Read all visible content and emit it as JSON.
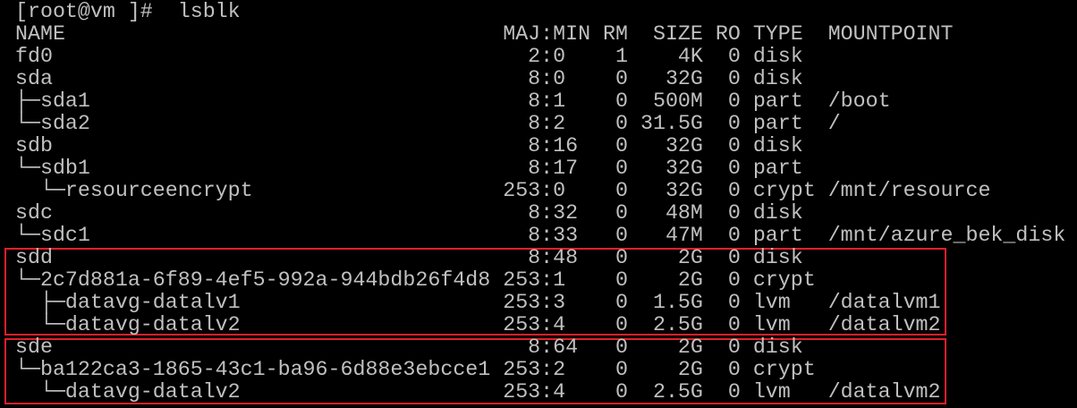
{
  "prompt": "[root@vm ]#  lsblk",
  "headers": {
    "name": "NAME",
    "majmin": "MAJ:MIN",
    "rm": "RM",
    "size": "SIZE",
    "ro": "RO",
    "type": "TYPE",
    "mountpoint": "MOUNTPOINT"
  },
  "rows": [
    {
      "name": "fd0",
      "majmin": "2:0",
      "rm": "1",
      "size": "4K",
      "ro": "0",
      "type": "disk",
      "mountpoint": ""
    },
    {
      "name": "sda",
      "majmin": "8:0",
      "rm": "0",
      "size": "32G",
      "ro": "0",
      "type": "disk",
      "mountpoint": ""
    },
    {
      "name": "├─sda1",
      "majmin": "8:1",
      "rm": "0",
      "size": "500M",
      "ro": "0",
      "type": "part",
      "mountpoint": "/boot"
    },
    {
      "name": "└─sda2",
      "majmin": "8:2",
      "rm": "0",
      "size": "31.5G",
      "ro": "0",
      "type": "part",
      "mountpoint": "/"
    },
    {
      "name": "sdb",
      "majmin": "8:16",
      "rm": "0",
      "size": "32G",
      "ro": "0",
      "type": "disk",
      "mountpoint": ""
    },
    {
      "name": "└─sdb1",
      "majmin": "8:17",
      "rm": "0",
      "size": "32G",
      "ro": "0",
      "type": "part",
      "mountpoint": ""
    },
    {
      "name": "  └─resourceencrypt",
      "majmin": "253:0",
      "rm": "0",
      "size": "32G",
      "ro": "0",
      "type": "crypt",
      "mountpoint": "/mnt/resource"
    },
    {
      "name": "sdc",
      "majmin": "8:32",
      "rm": "0",
      "size": "48M",
      "ro": "0",
      "type": "disk",
      "mountpoint": ""
    },
    {
      "name": "└─sdc1",
      "majmin": "8:33",
      "rm": "0",
      "size": "47M",
      "ro": "0",
      "type": "part",
      "mountpoint": "/mnt/azure_bek_disk"
    },
    {
      "name": "sdd",
      "majmin": "8:48",
      "rm": "0",
      "size": "2G",
      "ro": "0",
      "type": "disk",
      "mountpoint": ""
    },
    {
      "name": "└─2c7d881a-6f89-4ef5-992a-944bdb26f4d8",
      "majmin": "253:1",
      "rm": "0",
      "size": "2G",
      "ro": "0",
      "type": "crypt",
      "mountpoint": ""
    },
    {
      "name": "  ├─datavg-datalv1",
      "majmin": "253:3",
      "rm": "0",
      "size": "1.5G",
      "ro": "0",
      "type": "lvm",
      "mountpoint": "/datalvm1"
    },
    {
      "name": "  └─datavg-datalv2",
      "majmin": "253:4",
      "rm": "0",
      "size": "2.5G",
      "ro": "0",
      "type": "lvm",
      "mountpoint": "/datalvm2"
    },
    {
      "name": "sde",
      "majmin": "8:64",
      "rm": "0",
      "size": "2G",
      "ro": "0",
      "type": "disk",
      "mountpoint": ""
    },
    {
      "name": "└─ba122ca3-1865-43c1-ba96-6d88e3ebcce1",
      "majmin": "253:2",
      "rm": "0",
      "size": "2G",
      "ro": "0",
      "type": "crypt",
      "mountpoint": ""
    },
    {
      "name": "  └─datavg-datalv2",
      "majmin": "253:4",
      "rm": "0",
      "size": "2.5G",
      "ro": "0",
      "type": "lvm",
      "mountpoint": "/datalvm2"
    }
  ],
  "highlight_color": "#e3202c",
  "text_color": "#c0c0c0"
}
